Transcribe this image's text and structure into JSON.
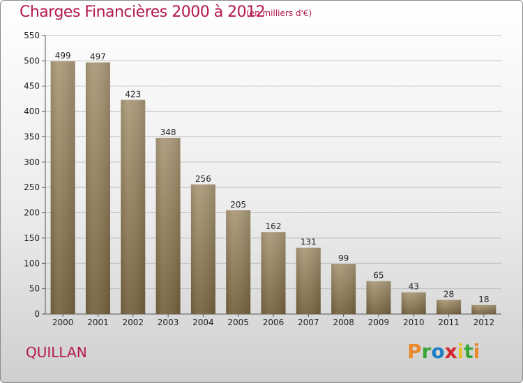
{
  "header": {
    "title": "Charges Financières 2000 à 2012",
    "unit": "(en milliers d'€)"
  },
  "footer": {
    "commune": "QUILLAN",
    "logo": "Proxiti",
    "logo_colors": [
      "#e8892b",
      "#3aa63a",
      "#1f7fc4",
      "#d6262d",
      "#e8c22b",
      "#3aa63a",
      "#e8892b"
    ]
  },
  "colors": {
    "accent": "#b5184f",
    "bar_light": "#ab9a79",
    "bar_dark": "#75633f"
  },
  "chart_data": {
    "type": "bar",
    "categories": [
      "2000",
      "2001",
      "2002",
      "2003",
      "2004",
      "2005",
      "2006",
      "2007",
      "2008",
      "2009",
      "2010",
      "2011",
      "2012"
    ],
    "values": [
      499,
      497,
      423,
      348,
      256,
      205,
      162,
      131,
      99,
      65,
      43,
      28,
      18
    ],
    "title": "Charges Financières 2000 à 2012",
    "ylim": [
      0,
      550
    ],
    "yticks": [
      0,
      50,
      100,
      150,
      200,
      250,
      300,
      350,
      400,
      450,
      500,
      550
    ],
    "grid": true
  }
}
